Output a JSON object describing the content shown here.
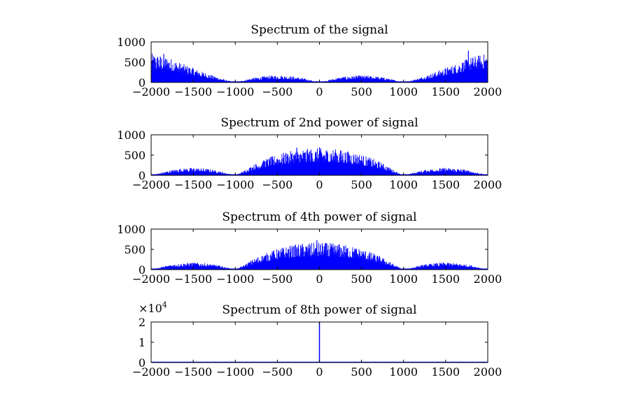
{
  "chart_data": [
    {
      "type": "area",
      "title": "Spectrum of the signal",
      "xlim": [
        -2000,
        2000
      ],
      "ylim": [
        0,
        1000
      ],
      "xticks": [
        -2000,
        -1500,
        -1000,
        -500,
        0,
        500,
        1000,
        1500,
        2000
      ],
      "yticks": [
        0,
        500,
        1000
      ],
      "exponent": "",
      "color": "#0000ff",
      "envelope": {
        "x": [
          -2000,
          -1900,
          -1800,
          -1700,
          -1600,
          -1500,
          -1400,
          -1300,
          -1200,
          -1100,
          -1000,
          -900,
          -800,
          -700,
          -600,
          -500,
          -400,
          -300,
          -200,
          -100,
          0,
          100,
          200,
          300,
          400,
          500,
          600,
          700,
          800,
          900,
          1000,
          1100,
          1200,
          1300,
          1400,
          1500,
          1600,
          1700,
          1800,
          1900,
          2000
        ],
        "y": [
          650,
          620,
          570,
          480,
          400,
          330,
          250,
          180,
          110,
          50,
          0,
          50,
          100,
          130,
          150,
          160,
          150,
          130,
          100,
          50,
          0,
          50,
          100,
          130,
          150,
          160,
          150,
          130,
          100,
          50,
          0,
          50,
          110,
          180,
          250,
          330,
          400,
          480,
          570,
          620,
          650
        ]
      },
      "peaks": [
        {
          "x": -1850,
          "y": 700
        },
        {
          "x": 1770,
          "y": 780
        }
      ]
    },
    {
      "type": "area",
      "title": "Spectrum of 2nd power of signal",
      "xlim": [
        -2000,
        2000
      ],
      "ylim": [
        0,
        1000
      ],
      "xticks": [
        -2000,
        -1500,
        -1000,
        -500,
        0,
        500,
        1000,
        1500,
        2000
      ],
      "yticks": [
        0,
        500,
        1000
      ],
      "exponent": "",
      "color": "#0000ff",
      "envelope": {
        "x": [
          -2000,
          -1900,
          -1800,
          -1700,
          -1600,
          -1500,
          -1400,
          -1300,
          -1200,
          -1100,
          -1000,
          -900,
          -800,
          -700,
          -600,
          -500,
          -400,
          -300,
          -200,
          -100,
          0,
          100,
          200,
          300,
          400,
          500,
          600,
          700,
          800,
          900,
          1000,
          1100,
          1200,
          1300,
          1400,
          1500,
          1600,
          1700,
          1800,
          1900,
          2000
        ],
        "y": [
          0,
          50,
          100,
          140,
          160,
          170,
          160,
          140,
          100,
          50,
          0,
          100,
          220,
          320,
          400,
          470,
          520,
          560,
          590,
          600,
          610,
          600,
          590,
          560,
          520,
          470,
          400,
          320,
          220,
          100,
          0,
          50,
          100,
          140,
          160,
          170,
          160,
          140,
          100,
          50,
          0
        ]
      },
      "peaks": [
        {
          "x": -270,
          "y": 680
        },
        {
          "x": 0,
          "y": 690
        }
      ]
    },
    {
      "type": "area",
      "title": "Spectrum of 4th power of signal",
      "xlim": [
        -2000,
        2000
      ],
      "ylim": [
        0,
        1000
      ],
      "xticks": [
        -2000,
        -1500,
        -1000,
        -500,
        0,
        500,
        1000,
        1500,
        2000
      ],
      "yticks": [
        0,
        500,
        1000
      ],
      "exponent": "",
      "color": "#0000ff",
      "envelope": {
        "x": [
          -2000,
          -1900,
          -1800,
          -1700,
          -1600,
          -1500,
          -1400,
          -1300,
          -1200,
          -1100,
          -1000,
          -900,
          -800,
          -700,
          -600,
          -500,
          -400,
          -300,
          -200,
          -100,
          0,
          100,
          200,
          300,
          400,
          500,
          600,
          700,
          800,
          900,
          1000,
          1100,
          1200,
          1300,
          1400,
          1500,
          1600,
          1700,
          1800,
          1900,
          2000
        ],
        "y": [
          0,
          50,
          100,
          130,
          150,
          160,
          150,
          130,
          100,
          50,
          0,
          100,
          220,
          320,
          400,
          470,
          520,
          560,
          590,
          600,
          610,
          600,
          590,
          560,
          520,
          470,
          400,
          320,
          220,
          100,
          0,
          50,
          100,
          130,
          150,
          160,
          150,
          130,
          100,
          50,
          0
        ]
      },
      "peaks": [
        {
          "x": -30,
          "y": 730
        }
      ]
    },
    {
      "type": "line",
      "title": "Spectrum of 8th power of signal",
      "xlim": [
        -2000,
        2000
      ],
      "ylim": [
        0,
        2
      ],
      "xticks": [
        -2000,
        -1500,
        -1000,
        -500,
        0,
        500,
        1000,
        1500,
        2000
      ],
      "yticks": [
        0,
        1,
        2
      ],
      "exponent": "×10^4",
      "exponent_base": "×10",
      "exponent_power": "4",
      "color": "#0000ff",
      "spike": {
        "x": 0,
        "y": 2.0
      }
    }
  ]
}
